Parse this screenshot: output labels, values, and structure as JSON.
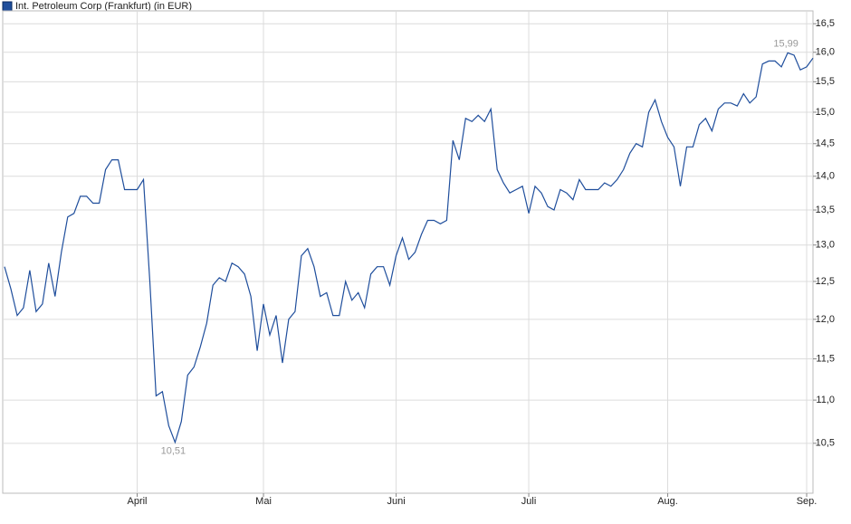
{
  "chart_data": {
    "type": "line",
    "title": "Int. Petroleum Corp (Frankfurt) (in EUR)",
    "categories": [
      null,
      null,
      null,
      null,
      null,
      null,
      null,
      null,
      null,
      null,
      null,
      null,
      null,
      null,
      null,
      null,
      null,
      null,
      null,
      null,
      null,
      "April",
      null,
      null,
      null,
      null,
      null,
      null,
      null,
      null,
      null,
      null,
      null,
      null,
      null,
      null,
      null,
      null,
      null,
      null,
      null,
      "Mai",
      null,
      null,
      null,
      null,
      null,
      null,
      null,
      null,
      null,
      null,
      null,
      null,
      null,
      null,
      null,
      null,
      null,
      null,
      null,
      null,
      "Juni",
      null,
      null,
      null,
      null,
      null,
      null,
      null,
      null,
      null,
      null,
      null,
      null,
      null,
      null,
      null,
      null,
      null,
      null,
      null,
      null,
      "Juli",
      null,
      null,
      null,
      null,
      null,
      null,
      null,
      null,
      null,
      null,
      null,
      null,
      null,
      null,
      null,
      null,
      null,
      null,
      null,
      null,
      null,
      "Aug.",
      null,
      null,
      null,
      null,
      null,
      null,
      null,
      null,
      null,
      null,
      null,
      null,
      null,
      null,
      null,
      null,
      null,
      null,
      null,
      null,
      null,
      "Sep.",
      null
    ],
    "series": [
      {
        "name": "Int. Petroleum Corp (Frankfurt) (in EUR)",
        "color": "#1f4e9c",
        "values": [
          12.7,
          12.4,
          12.05,
          12.15,
          12.65,
          12.1,
          12.2,
          12.75,
          12.3,
          12.9,
          13.4,
          13.45,
          13.7,
          13.7,
          13.6,
          13.6,
          14.1,
          14.25,
          14.25,
          13.8,
          13.8,
          13.8,
          13.95,
          12.5,
          11.05,
          11.1,
          10.7,
          10.51,
          10.75,
          11.3,
          11.4,
          11.65,
          11.95,
          12.45,
          12.55,
          12.5,
          12.75,
          12.7,
          12.6,
          12.3,
          11.6,
          12.2,
          11.8,
          12.05,
          11.45,
          12.0,
          12.1,
          12.85,
          12.95,
          12.7,
          12.3,
          12.35,
          12.05,
          12.05,
          12.5,
          12.25,
          12.35,
          12.15,
          12.6,
          12.7,
          12.7,
          12.45,
          12.85,
          13.1,
          12.8,
          12.9,
          13.15,
          13.35,
          13.35,
          13.3,
          13.35,
          14.55,
          14.25,
          14.9,
          14.85,
          14.95,
          14.85,
          15.05,
          14.1,
          13.9,
          13.75,
          13.8,
          13.85,
          13.45,
          13.85,
          13.75,
          13.55,
          13.5,
          13.8,
          13.75,
          13.65,
          13.95,
          13.8,
          13.8,
          13.8,
          13.9,
          13.85,
          13.95,
          14.1,
          14.35,
          14.5,
          14.45,
          15.0,
          15.2,
          14.85,
          14.6,
          14.45,
          13.85,
          14.45,
          14.45,
          14.8,
          14.9,
          14.7,
          15.05,
          15.15,
          15.15,
          15.1,
          15.3,
          15.15,
          15.25,
          15.8,
          15.85,
          15.85,
          15.75,
          15.99,
          15.95,
          15.7,
          15.75,
          15.9
        ]
      }
    ],
    "annotations": [
      {
        "label": "15,99",
        "value": 15.99,
        "position": "above"
      },
      {
        "label": "10,51",
        "value": 10.51,
        "position": "below"
      }
    ],
    "ylim": [
      9.95,
      16.73
    ],
    "log_scale": true,
    "grid": true,
    "legend": "top-left",
    "yticks": [
      {
        "value": 10.5,
        "label": "10,5"
      },
      {
        "value": 11,
        "label": "11,0"
      },
      {
        "value": 11.5,
        "label": "11,5"
      },
      {
        "value": 12,
        "label": "12,0"
      },
      {
        "value": 12.5,
        "label": "12,5"
      },
      {
        "value": 13,
        "label": "13,0"
      },
      {
        "value": 13.5,
        "label": "13,5"
      },
      {
        "value": 14,
        "label": "14,0"
      },
      {
        "value": 14.5,
        "label": "14,5"
      },
      {
        "value": 15,
        "label": "15,0"
      },
      {
        "value": 15.5,
        "label": "15,5"
      },
      {
        "value": 16,
        "label": "16,0"
      },
      {
        "value": 16.5,
        "label": "16,5"
      }
    ]
  }
}
